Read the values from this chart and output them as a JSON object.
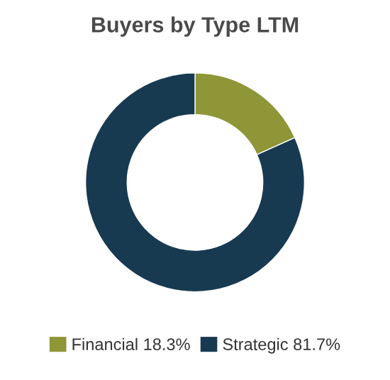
{
  "chart_data": {
    "type": "donut",
    "title": "Buyers by Type LTM",
    "categories": [
      "Financial 18.3%",
      "Strategic 81.7%"
    ],
    "values": [
      18.3,
      81.7
    ],
    "colors": [
      "#8e9637",
      "#173a51"
    ],
    "legend": "bottom"
  }
}
